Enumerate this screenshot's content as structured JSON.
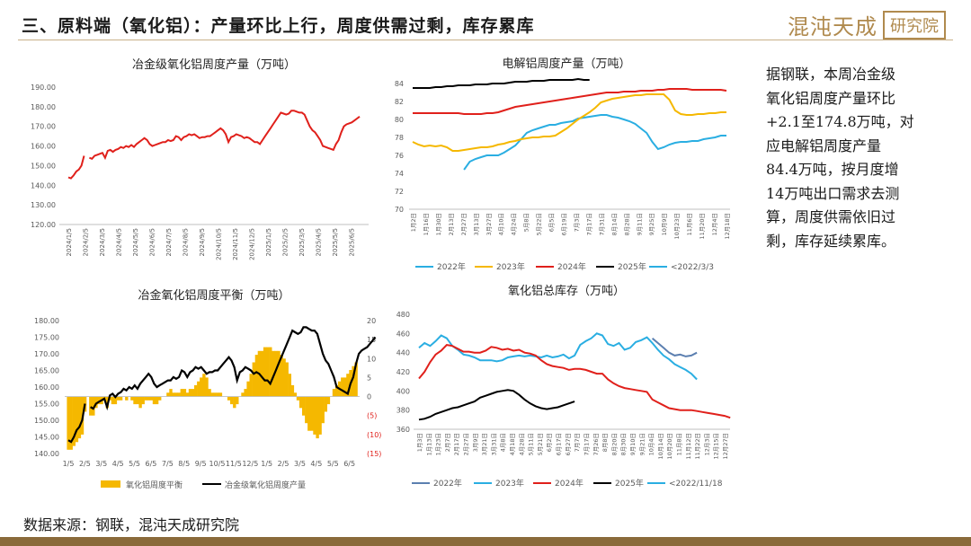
{
  "header": {
    "title": "三、原料端（氧化铝）：产量环比上行，周度供需过剩，库存累库",
    "brand_name": "混沌天成",
    "brand_box": "研究院"
  },
  "commentary": "据钢联，本周冶金级\n氧化铝周度产量环比\n+2.1至174.8万吨，对\n应电解铝周度产量\n84.4万吨，按月度增\n14万吨出口需求去测\n算，周度供需依旧过\n剩，库存延续累库。",
  "footer": {
    "source": "数据来源：钢联，混沌天成研究院"
  },
  "colors": {
    "red": "#e0201b",
    "black": "#000000",
    "gold": "#f5b800",
    "blue": "#2aaee2",
    "steel": "#5b7fb0",
    "axis": "#595959"
  },
  "chart_data": [
    {
      "type": "line",
      "title": "冶金级氧化铝周度产量（万吨）",
      "ylim": [
        120,
        190
      ],
      "yticks": [
        "190.00",
        "180.00",
        "170.00",
        "160.00",
        "150.00",
        "140.00",
        "130.00",
        "120.00"
      ],
      "xticks": [
        "2024/1/5",
        "2024/2/5",
        "2024/3/5",
        "2024/4/5",
        "2024/5/5",
        "2024/6/5",
        "2024/7/5",
        "2024/8/5",
        "2024/9/5",
        "2024/10/5",
        "2024/11/5",
        "2024/12/5",
        "2025/1/5",
        "2025/2/5",
        "2025/3/5",
        "2025/4/5",
        "2025/5/5",
        "2025/6/5"
      ],
      "series": [
        {
          "color": "#e0201b",
          "values": [
            144,
            143.5,
            145,
            147,
            148,
            150,
            155,
            null,
            154,
            153.5,
            155,
            155.5,
            156,
            156.5,
            154,
            157.5,
            158,
            157,
            158,
            158.5,
            159.5,
            159,
            160,
            159.5,
            160.5,
            159.5,
            161,
            162,
            163,
            164,
            163,
            161,
            160,
            160.5,
            161,
            161.5,
            162,
            162,
            163,
            162.5,
            163,
            165,
            164.5,
            163,
            164.5,
            165,
            166,
            165.5,
            166,
            165,
            164,
            164.5,
            164.5,
            165,
            165,
            166,
            167,
            168,
            169,
            168,
            166,
            162,
            164.5,
            165,
            166,
            165.5,
            165,
            164,
            164.5,
            164,
            163,
            162,
            162,
            161,
            163,
            165,
            167,
            169,
            171,
            173,
            175,
            177,
            176.5,
            176,
            176.5,
            178,
            178,
            177.5,
            177,
            177,
            176,
            173,
            170,
            168,
            167,
            165,
            163,
            160,
            159.5,
            159,
            158.5,
            158,
            161,
            163,
            167,
            170,
            171,
            171.5,
            172,
            173,
            174,
            175
          ]
        }
      ]
    },
    {
      "type": "line",
      "title": "电解铝周度产量（万吨）",
      "ylim": [
        70,
        84
      ],
      "yticks": [
        "84",
        "82",
        "80",
        "78",
        "76",
        "74",
        "72",
        "70"
      ],
      "xticks": [
        "1月2日",
        "1月16日",
        "1月30日",
        "2月13日",
        "2月27日",
        "3月13日",
        "3月27日",
        "4月10日",
        "4月24日",
        "5月8日",
        "5月22日",
        "6月5日",
        "6月19日",
        "7月3日",
        "7月17日",
        "7月31日",
        "8月14日",
        "8月28日",
        "9月11日",
        "9月25日",
        "10月9日",
        "10月23日",
        "11月6日",
        "11月20日",
        "12月4日",
        "12月18日"
      ],
      "legend": [
        "2022年",
        "2023年",
        "2024年",
        "2025年",
        "<2022/3/3"
      ],
      "series": [
        {
          "name": "2022年",
          "color": "#2aaee2",
          "values": [
            null,
            null,
            null,
            null,
            null,
            null,
            null,
            null,
            null,
            74.4,
            75.3,
            75.6,
            75.8,
            76.0,
            76.0,
            76.0,
            76.3,
            76.7,
            77.1,
            77.8,
            78.5,
            78.8,
            79.0,
            79.2,
            79.4,
            79.4,
            79.6,
            79.7,
            79.8,
            80.1,
            80.2,
            80.3,
            80.4,
            80.5,
            80.5,
            80.3,
            80.2,
            80.0,
            79.8,
            79.5,
            79.0,
            78.5,
            77.5,
            76.7,
            76.9,
            77.2,
            77.4,
            77.5,
            77.5,
            77.6,
            77.6,
            77.8,
            77.9,
            78.0,
            78.2,
            78.2
          ]
        },
        {
          "name": "2023年",
          "color": "#f5b800",
          "values": [
            77.5,
            77.2,
            77.0,
            77.1,
            77.0,
            77.1,
            76.9,
            76.5,
            76.5,
            76.6,
            76.7,
            76.8,
            76.9,
            76.9,
            77.0,
            77.2,
            77.3,
            77.5,
            77.6,
            77.8,
            77.9,
            78.0,
            78.0,
            78.1,
            78.1,
            78.2,
            78.6,
            79.0,
            79.5,
            80.0,
            80.4,
            80.8,
            81.3,
            81.9,
            82.1,
            82.3,
            82.4,
            82.5,
            82.6,
            82.7,
            82.7,
            82.8,
            82.8,
            82.8,
            82.8,
            82.2,
            81.0,
            80.6,
            80.5,
            80.5,
            80.6,
            80.6,
            80.7,
            80.7,
            80.8,
            80.8
          ]
        },
        {
          "name": "2024年",
          "color": "#e0201b",
          "values": [
            80.7,
            80.7,
            80.7,
            80.7,
            80.7,
            80.7,
            80.7,
            80.7,
            80.7,
            80.6,
            80.6,
            80.6,
            80.6,
            80.7,
            80.7,
            80.8,
            81.0,
            81.2,
            81.4,
            81.5,
            81.6,
            81.7,
            81.8,
            81.9,
            82.0,
            82.1,
            82.2,
            82.3,
            82.4,
            82.5,
            82.6,
            82.7,
            82.8,
            82.9,
            83.0,
            83.0,
            83.0,
            83.1,
            83.1,
            83.1,
            83.2,
            83.2,
            83.2,
            83.3,
            83.3,
            83.4,
            83.4,
            83.4,
            83.4,
            83.3,
            83.3,
            83.3,
            83.3,
            83.3,
            83.3,
            83.2
          ]
        },
        {
          "name": "2025年",
          "color": "#000000",
          "values": [
            83.5,
            83.5,
            83.5,
            83.5,
            83.6,
            83.6,
            83.7,
            83.7,
            83.8,
            83.8,
            83.8,
            83.9,
            83.9,
            83.9,
            84.0,
            84.0,
            84.0,
            84.1,
            84.2,
            84.2,
            84.2,
            84.3,
            84.3,
            84.3,
            84.4,
            84.4,
            84.4,
            84.4,
            84.4,
            84.5,
            84.4,
            84.4
          ]
        }
      ]
    },
    {
      "type": "bar+line",
      "title": "冶金氧化铝周度平衡（万吨）",
      "ylim": [
        140,
        180
      ],
      "y2lim": [
        -15,
        20
      ],
      "yticks": [
        "180.00",
        "175.00",
        "170.00",
        "165.00",
        "160.00",
        "155.00",
        "150.00",
        "145.00",
        "140.00"
      ],
      "y2ticks": [
        "20",
        "15",
        "10",
        "5",
        "0",
        "(5)",
        "(10)",
        "(15)"
      ],
      "xticks": [
        "1/5",
        "2/5",
        "3/5",
        "4/5",
        "5/5",
        "6/5",
        "7/5",
        "8/5",
        "9/5",
        "10/5",
        "11/5",
        "12/5",
        "1/5",
        "2/5",
        "3/5",
        "4/5",
        "5/5",
        "6/5"
      ],
      "legend": [
        "氧化铝周度平衡",
        "冶金级氧化铝周度产量"
      ],
      "series": [
        {
          "name": "氧化铝周度平衡",
          "type": "bar",
          "color": "#f5b800",
          "values": [
            -14,
            -14,
            -13,
            -12,
            -11,
            -10,
            -4,
            null,
            -5,
            -5,
            -3,
            -2,
            -2,
            -1,
            -3,
            -1,
            -2,
            -2,
            -1,
            -1,
            0,
            -1,
            0,
            -1,
            -2,
            -2,
            -3,
            -2,
            -1,
            -1,
            -1,
            -2,
            -2,
            -1,
            0,
            0,
            1,
            2,
            1,
            1,
            1,
            2,
            2,
            1,
            2,
            2,
            3,
            4,
            5,
            6,
            5,
            2,
            1,
            1,
            1,
            1,
            0,
            0,
            -1,
            -2,
            -3,
            -2,
            0,
            1,
            2,
            4,
            6,
            9,
            11,
            12,
            12,
            13,
            13,
            13,
            12,
            12,
            12,
            11,
            10,
            9,
            6,
            3,
            1,
            -1,
            -3,
            -5,
            -7,
            -9,
            -9,
            -10,
            -11,
            -10,
            -7,
            -4,
            -2,
            0,
            2,
            3,
            4,
            5,
            5,
            6,
            7,
            8,
            9
          ]
        },
        {
          "name": "冶金级氧化铝周度产量",
          "type": "line",
          "color": "#000000",
          "values": [
            144,
            143.5,
            145,
            147,
            148,
            150,
            155,
            null,
            154,
            153.5,
            155,
            155.5,
            156,
            156.5,
            154,
            157.5,
            158,
            157,
            158,
            158.5,
            159.5,
            159,
            160,
            159.5,
            160.5,
            159.5,
            161,
            162,
            163,
            164,
            163,
            161,
            160,
            160.5,
            161,
            161.5,
            162,
            162,
            163,
            162.5,
            163,
            165,
            164.5,
            163,
            164.5,
            165,
            166,
            165.5,
            166,
            165,
            164,
            164.5,
            164.5,
            165,
            165,
            166,
            167,
            168,
            169,
            168,
            166,
            162,
            164.5,
            165,
            166,
            165.5,
            165,
            164,
            164.5,
            164,
            163,
            162,
            162,
            161,
            163,
            165,
            167,
            169,
            171,
            173,
            175,
            177,
            176.5,
            176,
            176.5,
            178,
            178,
            177.5,
            177,
            177,
            176,
            173,
            170,
            168,
            167,
            165,
            163,
            160,
            159.5,
            159,
            158.5,
            158,
            161,
            163,
            167,
            170,
            171,
            171.5,
            172,
            173,
            174,
            175
          ]
        }
      ]
    },
    {
      "type": "line",
      "title": "氧化铝总库存（万吨）",
      "ylim": [
        360,
        480
      ],
      "yticks": [
        "480",
        "460",
        "440",
        "420",
        "400",
        "380",
        "360"
      ],
      "xticks": [
        "1月3日",
        "1月13日",
        "1月23日",
        "2月7日",
        "2月17日",
        "2月27日",
        "3月9日",
        "3月21日",
        "3月31日",
        "4月8日",
        "4月18日",
        "4月28日",
        "5月11日",
        "5月21日",
        "6月2日",
        "6月17日",
        "6月27日",
        "7月7日",
        "7月17日",
        "7月26日",
        "8月8日",
        "8月20日",
        "8月30日",
        "9月10日",
        "9月21日",
        "10月4日",
        "10月14日",
        "10月20日",
        "11月8日",
        "11月12日",
        "11月22日",
        "12月3日",
        "12月15日",
        "12月27日"
      ],
      "legend": [
        "2022年",
        "2023年",
        "2024年",
        "2025年",
        "<2022/11/18"
      ],
      "series": [
        {
          "name": "2022年",
          "color": "#5b7fb0",
          "values": [
            null,
            null,
            null,
            null,
            null,
            null,
            null,
            null,
            null,
            null,
            null,
            null,
            null,
            null,
            null,
            null,
            null,
            null,
            null,
            null,
            null,
            null,
            null,
            null,
            null,
            null,
            null,
            null,
            null,
            null,
            null,
            null,
            null,
            null,
            null,
            null,
            null,
            null,
            null,
            null,
            null,
            null,
            455,
            450,
            445,
            440,
            437,
            438,
            436,
            437,
            440
          ]
        },
        {
          "name": "2023年",
          "color": "#2aaee2",
          "values": [
            445,
            450,
            447,
            452,
            458,
            455,
            447,
            443,
            438,
            437,
            435,
            432,
            432,
            432,
            431,
            432,
            435,
            436,
            437,
            436,
            437,
            436,
            435,
            437,
            435,
            436,
            438,
            434,
            437,
            448,
            452,
            455,
            460,
            458,
            449,
            447,
            450,
            443,
            445,
            451,
            453,
            456,
            450,
            443,
            437,
            433,
            428,
            425,
            422,
            418,
            412
          ]
        },
        {
          "name": "2024年",
          "color": "#e0201b",
          "values": [
            413,
            420,
            430,
            438,
            442,
            448,
            447,
            444,
            441,
            441,
            440,
            440,
            442,
            446,
            445,
            443,
            444,
            442,
            443,
            440,
            439,
            437,
            432,
            428,
            426,
            425,
            424,
            422,
            423,
            423,
            422,
            420,
            418,
            418,
            412,
            408,
            405,
            403,
            402,
            401,
            400,
            399,
            391,
            388,
            385,
            382,
            381,
            380,
            380,
            380,
            379,
            378,
            377,
            376,
            375,
            374,
            372
          ]
        },
        {
          "name": "2025年",
          "color": "#000000",
          "values": [
            370,
            371,
            373,
            376,
            378,
            380,
            382,
            383,
            385,
            387,
            389,
            393,
            395,
            397,
            399,
            400,
            401,
            400,
            396,
            391,
            387,
            384,
            382,
            381,
            382,
            383,
            385,
            387,
            389
          ]
        }
      ]
    }
  ]
}
